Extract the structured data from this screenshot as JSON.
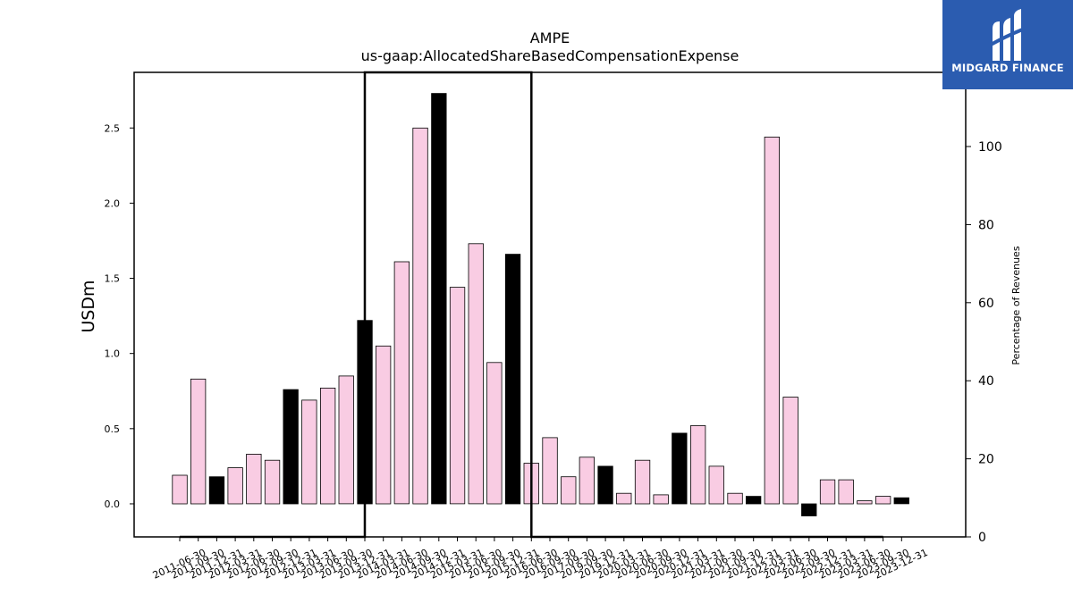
{
  "chart_data": {
    "type": "bar",
    "title": "AMPE",
    "subtitle": "us-gaap:AllocatedShareBasedCompensationExpense",
    "ylabel": "USDm",
    "y2label": "Percentage of Revenues",
    "ylim": [
      -0.22,
      2.87
    ],
    "y2lim": [
      0,
      119
    ],
    "yticks": [
      "0.0",
      "0.5",
      "1.0",
      "1.5",
      "2.0",
      "2.5"
    ],
    "y2ticks": [
      "0",
      "20",
      "40",
      "60",
      "80",
      "100"
    ],
    "categories": [
      "2011-06-30",
      "2011-09-30",
      "2011-12-31",
      "2012-03-31",
      "2012-06-30",
      "2012-09-30",
      "2012-12-31",
      "2013-03-31",
      "2013-06-30",
      "2013-09-30",
      "2013-12-31",
      "2014-03-31",
      "2014-06-30",
      "2014-09-30",
      "2014-12-31",
      "2015-03-31",
      "2015-06-30",
      "2015-09-30",
      "2015-12-31",
      "2016-06-30",
      "2016-09-30",
      "2017-09-30",
      "2019-09-30",
      "2019-12-31",
      "2020-03-31",
      "2020-06-30",
      "2020-09-30",
      "2020-12-31",
      "2021-03-31",
      "2021-06-30",
      "2021-09-30",
      "2021-12-31",
      "2022-03-31",
      "2022-06-30",
      "2022-09-30",
      "2022-12-31",
      "2023-03-31",
      "2023-06-30",
      "2023-09-30",
      "2023-12-31"
    ],
    "values": [
      0.19,
      0.83,
      0.18,
      0.24,
      0.33,
      0.29,
      0.76,
      0.69,
      0.77,
      0.85,
      1.22,
      1.05,
      1.61,
      2.5,
      2.73,
      1.44,
      1.73,
      0.94,
      1.66,
      0.27,
      0.44,
      0.18,
      0.31,
      0.25,
      0.07,
      0.29,
      0.06,
      0.47,
      0.52,
      0.25,
      0.07,
      0.05,
      2.44,
      0.71,
      -0.08,
      0.16,
      0.16,
      0.02,
      0.05,
      0.04
    ],
    "highlight": [
      false,
      false,
      true,
      false,
      false,
      false,
      true,
      false,
      false,
      false,
      true,
      false,
      false,
      false,
      true,
      false,
      false,
      false,
      true,
      false,
      false,
      false,
      false,
      true,
      false,
      false,
      false,
      true,
      false,
      false,
      false,
      true,
      false,
      false,
      true,
      false,
      false,
      false,
      false,
      true
    ],
    "pct_revenue_line": {
      "x": [
        "2011-06-30",
        "2013-12-31",
        "2013-12-31",
        "2016-06-30",
        "2016-06-30",
        "2023-09-30"
      ],
      "y": [
        0,
        0,
        119,
        119,
        0,
        0
      ]
    },
    "colors": {
      "bar": "#f9cce3",
      "highlight": "#000000",
      "line": "#000000"
    },
    "grid": false
  },
  "logo": {
    "text": "MIDGARD FINANCE",
    "background": "#2b5cb0"
  }
}
